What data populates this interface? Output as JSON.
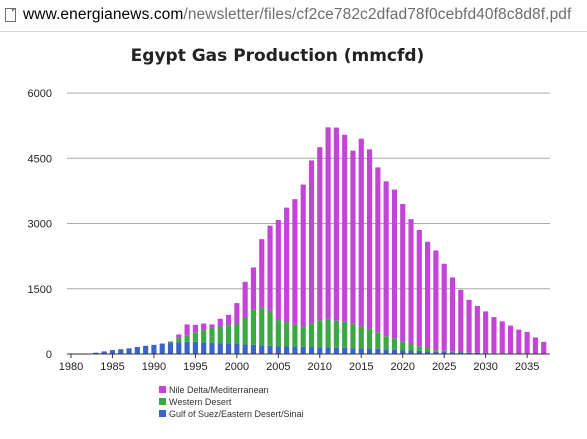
{
  "browser": {
    "url_domain": "www.energianews.com",
    "url_path": "/newsletter/files/cf2ce782c2dfad78f0cebfd40f8c8d8f.pdf"
  },
  "chart_data": {
    "type": "bar",
    "stacked": true,
    "title": "Egypt Gas Production (mmcfd)",
    "xlabel": "",
    "ylabel": "",
    "ylim": [
      0,
      6000
    ],
    "yticks": [
      0,
      1500,
      3000,
      4500,
      6000
    ],
    "ytick_labels": [
      "0",
      "1500",
      "3000",
      "4500",
      "6000"
    ],
    "xlim": [
      1980,
      2038
    ],
    "xticks": [
      1980,
      1985,
      1990,
      1995,
      2000,
      2005,
      2010,
      2015,
      2020,
      2025,
      2030,
      2035
    ],
    "xtick_labels": [
      "1980",
      "1985",
      "1990",
      "1995",
      "2000",
      "2005",
      "2010",
      "2015",
      "2020",
      "2025",
      "2030",
      "2035"
    ],
    "grid": true,
    "legend_position": "bottom-left",
    "categories": [
      1983,
      1984,
      1985,
      1986,
      1987,
      1988,
      1989,
      1990,
      1991,
      1992,
      1993,
      1994,
      1995,
      1996,
      1997,
      1998,
      1999,
      2000,
      2001,
      2002,
      2003,
      2004,
      2005,
      2006,
      2007,
      2008,
      2009,
      2010,
      2011,
      2012,
      2013,
      2014,
      2015,
      2016,
      2017,
      2018,
      2019,
      2020,
      2021,
      2022,
      2023,
      2024,
      2025,
      2026,
      2027,
      2028,
      2029,
      2030,
      2031,
      2032,
      2033,
      2034,
      2035,
      2036,
      2037
    ],
    "series": [
      {
        "name": "Gulf of Suez/Eastern Desert/Sinai",
        "color": "#3b64c8",
        "values": [
          30,
          60,
          90,
          110,
          130,
          160,
          190,
          210,
          240,
          260,
          270,
          280,
          280,
          270,
          260,
          250,
          240,
          230,
          220,
          210,
          200,
          190,
          180,
          175,
          170,
          165,
          160,
          155,
          150,
          145,
          140,
          135,
          130,
          125,
          120,
          110,
          100,
          90,
          80,
          70,
          60,
          50,
          45,
          40,
          35,
          30,
          25,
          20,
          18,
          15,
          12,
          10,
          8,
          6,
          5
        ]
      },
      {
        "name": "Western Desert",
        "color": "#3da843",
        "values": [
          0,
          0,
          0,
          0,
          0,
          0,
          0,
          0,
          0,
          30,
          100,
          150,
          220,
          280,
          340,
          380,
          420,
          470,
          620,
          820,
          860,
          800,
          600,
          560,
          500,
          470,
          540,
          620,
          640,
          620,
          600,
          560,
          510,
          460,
          380,
          300,
          260,
          200,
          150,
          110,
          80,
          50,
          30,
          20,
          10,
          5,
          0,
          0,
          0,
          0,
          0,
          0,
          0,
          0,
          0
        ]
      },
      {
        "name": "Nile Delta/Mediterranean",
        "color": "#c245d8",
        "values": [
          0,
          0,
          0,
          0,
          0,
          0,
          0,
          0,
          0,
          0,
          80,
          250,
          170,
          150,
          80,
          180,
          240,
          470,
          820,
          960,
          1580,
          1960,
          2300,
          2630,
          2890,
          3260,
          3750,
          3980,
          4420,
          4440,
          4300,
          3980,
          4310,
          4120,
          3790,
          3560,
          3420,
          3160,
          2870,
          2670,
          2440,
          2280,
          2000,
          1700,
          1430,
          1210,
          1080,
          960,
          830,
          735,
          640,
          550,
          500,
          375,
          275
        ]
      }
    ]
  }
}
